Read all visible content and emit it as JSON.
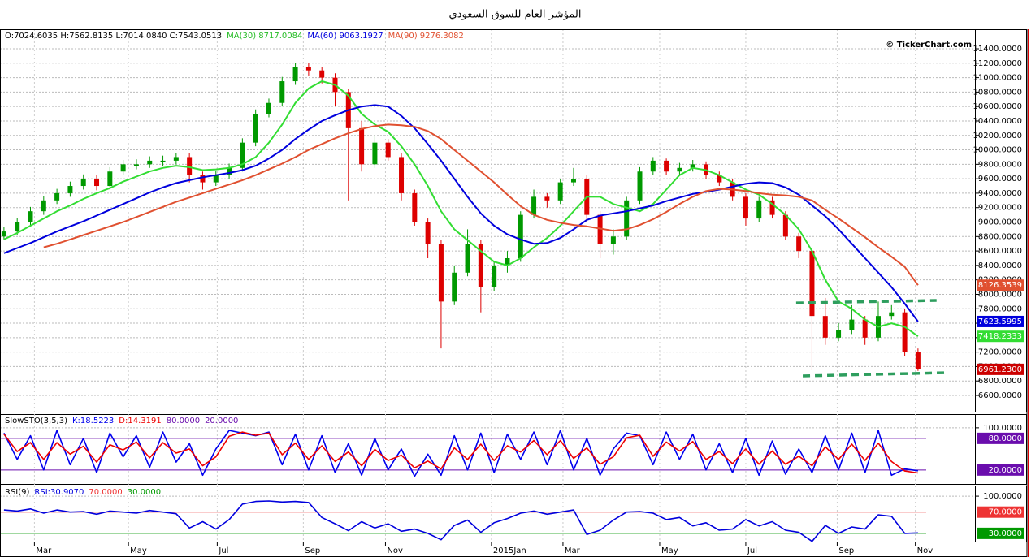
{
  "chart_data": [
    {
      "type": "candlestick",
      "title": "المؤشر العام للسوق السعودي",
      "copyright": "© TickerChart.com",
      "legend": [
        {
          "text": "O:7024.6035 H:7562.8135 L:7014.0840 C:7543.0513",
          "color": "#000000"
        },
        {
          "text": "MA(30) 8717.0084",
          "color": "#22bb22"
        },
        {
          "text": "MA(60) 9063.1927",
          "color": "#0000dd"
        },
        {
          "text": "MA(90) 9276.3082",
          "color": "#e05030"
        }
      ],
      "up_color": "#009900",
      "down_color": "#dd0000",
      "ohlc": [
        [
          8800,
          8930,
          8750,
          8870
        ],
        [
          8870,
          9060,
          8820,
          9000
        ],
        [
          9000,
          9210,
          8950,
          9150
        ],
        [
          9150,
          9360,
          9100,
          9300
        ],
        [
          9300,
          9460,
          9250,
          9400
        ],
        [
          9400,
          9560,
          9350,
          9500
        ],
        [
          9500,
          9660,
          9450,
          9600
        ],
        [
          9600,
          9650,
          9440,
          9500
        ],
        [
          9500,
          9760,
          9450,
          9700
        ],
        [
          9700,
          9860,
          9650,
          9800
        ],
        [
          9780,
          9870,
          9730,
          9800
        ],
        [
          9800,
          9910,
          9750,
          9850
        ],
        [
          9830,
          9920,
          9780,
          9850
        ],
        [
          9850,
          9960,
          9800,
          9900
        ],
        [
          9900,
          9950,
          9550,
          9650
        ],
        [
          9650,
          9700,
          9450,
          9550
        ],
        [
          9550,
          9710,
          9500,
          9650
        ],
        [
          9650,
          9810,
          9600,
          9750
        ],
        [
          9750,
          10160,
          9700,
          10100
        ],
        [
          10100,
          10560,
          10050,
          10500
        ],
        [
          10500,
          10710,
          10450,
          10650
        ],
        [
          10650,
          11010,
          10600,
          10950
        ],
        [
          10950,
          11200,
          10900,
          11150
        ],
        [
          11150,
          11200,
          11030,
          11100
        ],
        [
          11100,
          11150,
          10920,
          11000
        ],
        [
          11000,
          11060,
          10600,
          10800
        ],
        [
          10800,
          10850,
          9300,
          10300
        ],
        [
          10300,
          10400,
          9700,
          9800
        ],
        [
          9800,
          10200,
          9750,
          10100
        ],
        [
          10100,
          10150,
          9850,
          9900
        ],
        [
          9900,
          9950,
          9300,
          9400
        ],
        [
          9400,
          9450,
          8950,
          9000
        ],
        [
          9000,
          9050,
          8500,
          8700
        ],
        [
          8700,
          8750,
          7250,
          7900
        ],
        [
          7900,
          8400,
          7850,
          8300
        ],
        [
          8300,
          8900,
          8250,
          8700
        ],
        [
          8700,
          8750,
          7750,
          8100
        ],
        [
          8100,
          8450,
          8050,
          8400
        ],
        [
          8400,
          8600,
          8300,
          8500
        ],
        [
          8500,
          9150,
          8450,
          9100
        ],
        [
          9100,
          9450,
          9050,
          9350
        ],
        [
          9350,
          9400,
          9200,
          9300
        ],
        [
          9300,
          9600,
          9250,
          9550
        ],
        [
          9550,
          9750,
          9500,
          9600
        ],
        [
          9600,
          9650,
          9000,
          9100
        ],
        [
          9100,
          9150,
          8500,
          8700
        ],
        [
          8700,
          8900,
          8550,
          8800
        ],
        [
          8800,
          9350,
          8750,
          9300
        ],
        [
          9300,
          9760,
          9250,
          9700
        ],
        [
          9700,
          9900,
          9650,
          9850
        ],
        [
          9850,
          9880,
          9650,
          9700
        ],
        [
          9700,
          9820,
          9650,
          9750
        ],
        [
          9750,
          9860,
          9700,
          9800
        ],
        [
          9800,
          9840,
          9600,
          9650
        ],
        [
          9650,
          9700,
          9500,
          9550
        ],
        [
          9550,
          9600,
          9300,
          9350
        ],
        [
          9350,
          9400,
          8950,
          9050
        ],
        [
          9050,
          9350,
          9000,
          9300
        ],
        [
          9300,
          9350,
          9050,
          9100
        ],
        [
          9100,
          9150,
          8750,
          8800
        ],
        [
          8800,
          8850,
          8500,
          8600
        ],
        [
          8600,
          8650,
          6950,
          7700
        ],
        [
          7700,
          7950,
          7300,
          7400
        ],
        [
          7400,
          7600,
          7350,
          7500
        ],
        [
          7500,
          7850,
          7450,
          7650
        ],
        [
          7650,
          7700,
          7300,
          7400
        ],
        [
          7400,
          7900,
          7350,
          7700
        ],
        [
          7700,
          7850,
          7650,
          7750
        ],
        [
          7750,
          7800,
          7150,
          7200
        ],
        [
          7200,
          7250,
          6940,
          6961.23
        ]
      ],
      "series": [
        {
          "name": "MA(30)",
          "color": "#33dd33",
          "values": [
            8760,
            8850,
            8950,
            9050,
            9150,
            9230,
            9320,
            9400,
            9470,
            9560,
            9630,
            9700,
            9750,
            9780,
            9760,
            9720,
            9730,
            9750,
            9800,
            9900,
            10100,
            10350,
            10650,
            10850,
            10950,
            10900,
            10750,
            10500,
            10350,
            10250,
            10050,
            9800,
            9500,
            9150,
            8900,
            8750,
            8600,
            8450,
            8400,
            8500,
            8650,
            8780,
            8950,
            9150,
            9350,
            9350,
            9250,
            9200,
            9150,
            9250,
            9450,
            9650,
            9750,
            9720,
            9650,
            9550,
            9450,
            9380,
            9250,
            9100,
            8900,
            8600,
            8200,
            7900,
            7800,
            7650,
            7550,
            7600,
            7550,
            7418.2333
          ]
        },
        {
          "name": "MA(60)",
          "color": "#0000dd",
          "values": [
            8570,
            8640,
            8710,
            8790,
            8870,
            8940,
            9010,
            9090,
            9170,
            9250,
            9330,
            9410,
            9480,
            9540,
            9580,
            9620,
            9650,
            9680,
            9720,
            9780,
            9880,
            10000,
            10150,
            10280,
            10400,
            10480,
            10550,
            10600,
            10620,
            10600,
            10470,
            10300,
            10080,
            9850,
            9600,
            9350,
            9120,
            8950,
            8830,
            8760,
            8700,
            8710,
            8780,
            8900,
            9030,
            9090,
            9120,
            9150,
            9190,
            9230,
            9290,
            9340,
            9390,
            9420,
            9450,
            9490,
            9530,
            9550,
            9540,
            9480,
            9380,
            9230,
            9080,
            8900,
            8700,
            8500,
            8300,
            8100,
            7870,
            7623.5995
          ]
        },
        {
          "name": "MA(90)",
          "color": "#e05030",
          "values": [
            null,
            null,
            null,
            8650,
            8700,
            8760,
            8820,
            8880,
            8940,
            9000,
            9070,
            9140,
            9210,
            9280,
            9340,
            9400,
            9460,
            9520,
            9580,
            9650,
            9730,
            9810,
            9900,
            10000,
            10080,
            10160,
            10230,
            10290,
            10330,
            10350,
            10340,
            10320,
            10260,
            10150,
            10000,
            9850,
            9700,
            9550,
            9380,
            9220,
            9100,
            9030,
            8990,
            8960,
            8940,
            8910,
            8880,
            8900,
            8960,
            9040,
            9140,
            9250,
            9350,
            9430,
            9460,
            9450,
            9430,
            9400,
            9380,
            9370,
            9350,
            9300,
            9170,
            9050,
            8920,
            8790,
            8650,
            8520,
            8380,
            8126.3539
          ]
        }
      ],
      "last_price": {
        "value": 6961.23,
        "label": "6961.2300",
        "color": "#cc0000"
      },
      "trendlines": [
        {
          "x": [
            59.8,
            70.4
          ],
          "values": [
            7880,
            7915
          ]
        },
        {
          "x": [
            60.3,
            71.2
          ],
          "values": [
            6870,
            6915
          ]
        }
      ],
      "trendline_color": "#2e9e5e",
      "xlim": [
        -0.3,
        73.3
      ],
      "ylim": [
        6364,
        11670
      ],
      "grid": true,
      "yticks": [
        {
          "value": 6600,
          "label": "6600.0000"
        },
        {
          "value": 6800,
          "label": "6800.0000"
        },
        {
          "value": 7000,
          "label": "7000.0000"
        },
        {
          "value": 7200,
          "label": "7200.0000"
        },
        {
          "value": 7400,
          "label": "7400.0000"
        },
        {
          "value": 7600,
          "label": "7600.0000"
        },
        {
          "value": 7800,
          "label": "7800.0000"
        },
        {
          "value": 8000,
          "label": "8000.0000"
        },
        {
          "value": 8200,
          "label": "8200.0000"
        },
        {
          "value": 8400,
          "label": "8400.0000"
        },
        {
          "value": 8600,
          "label": "8600.0000"
        },
        {
          "value": 8800,
          "label": "8800.0000"
        },
        {
          "value": 9000,
          "label": "9000.0000"
        },
        {
          "value": 9200,
          "label": "9200.0000"
        },
        {
          "value": 9400,
          "label": "9400.0000"
        },
        {
          "value": 9600,
          "label": "9600.0000"
        },
        {
          "value": 9800,
          "label": "9800.0000"
        },
        {
          "value": 10000,
          "label": "10000.0000"
        },
        {
          "value": 10200,
          "label": "10200.0000"
        },
        {
          "value": 10400,
          "label": "10400.0000"
        },
        {
          "value": 10600,
          "label": "10600.0000"
        },
        {
          "value": 10800,
          "label": "10800.0000"
        },
        {
          "value": 11000,
          "label": "11000.0000"
        },
        {
          "value": 11200,
          "label": "11200.0000"
        },
        {
          "value": 11400,
          "label": "11400.0000"
        }
      ]
    },
    {
      "type": "line",
      "legend": [
        {
          "text": "SlowSTO(3,5,3)",
          "color": "#000000"
        },
        {
          "text": "K:18.5223",
          "color": "#0000ee"
        },
        {
          "text": "D:14.3191",
          "color": "#ee0000"
        },
        {
          "text": "80.0000",
          "color": "#6a0dad"
        },
        {
          "text": "20.0000",
          "color": "#6a0dad"
        }
      ],
      "series": [
        {
          "name": "K",
          "color": "#0000ee",
          "values": [
            90,
            40,
            85,
            20,
            95,
            30,
            80,
            15,
            90,
            45,
            85,
            25,
            92,
            35,
            70,
            10,
            60,
            95,
            90,
            85,
            92,
            30,
            88,
            20,
            85,
            15,
            70,
            10,
            80,
            20,
            60,
            8,
            50,
            10,
            85,
            20,
            90,
            15,
            88,
            40,
            92,
            30,
            95,
            20,
            80,
            10,
            60,
            90,
            85,
            30,
            92,
            40,
            88,
            20,
            70,
            15,
            80,
            10,
            75,
            12,
            60,
            15,
            85,
            20,
            90,
            15,
            95,
            10,
            22,
            18.5223
          ]
        },
        {
          "name": "D",
          "color": "#ee0000",
          "values": [
            88,
            55,
            72,
            40,
            72,
            50,
            65,
            35,
            68,
            58,
            73,
            43,
            72,
            52,
            60,
            28,
            45,
            84,
            92,
            86,
            90,
            49,
            71,
            40,
            66,
            36,
            54,
            28,
            59,
            38,
            48,
            24,
            37,
            22,
            62,
            40,
            69,
            38,
            66,
            54,
            76,
            49,
            76,
            42,
            62,
            31,
            45,
            81,
            86,
            46,
            73,
            56,
            74,
            40,
            55,
            32,
            60,
            31,
            56,
            31,
            46,
            28,
            64,
            40,
            69,
            38,
            71,
            36,
            18,
            14.3191
          ]
        }
      ],
      "levels": [
        {
          "value": 80,
          "label": "80.0000",
          "color": "#6a0dad"
        },
        {
          "value": 20,
          "label": "20.0000",
          "color": "#6a0dad"
        }
      ],
      "xlim": [
        -0.3,
        73.3
      ],
      "ylim": [
        -8,
        126
      ],
      "grid": true,
      "yticks": [
        {
          "value": 100,
          "label": "100.0000"
        }
      ]
    },
    {
      "type": "line",
      "legend": [
        {
          "text": "RSI(9)",
          "color": "#000000"
        },
        {
          "text": "RSI:30.9070",
          "color": "#0000dd"
        },
        {
          "text": "70.0000",
          "color": "#ee3333"
        },
        {
          "text": "30.0000",
          "color": "#009900"
        }
      ],
      "series": [
        {
          "name": "RSI",
          "color": "#0000dd",
          "values": [
            74,
            72,
            76,
            68,
            74,
            70,
            71,
            66,
            72,
            70,
            68,
            73,
            70,
            67,
            40,
            52,
            38,
            56,
            85,
            90,
            91,
            89,
            90,
            88,
            60,
            48,
            35,
            52,
            40,
            48,
            34,
            38,
            30,
            18,
            45,
            55,
            32,
            50,
            58,
            68,
            72,
            66,
            70,
            74,
            28,
            36,
            55,
            70,
            71,
            68,
            56,
            60,
            44,
            50,
            36,
            38,
            56,
            44,
            52,
            36,
            32,
            15,
            45,
            30,
            42,
            38,
            65,
            62,
            30,
            30.907
          ]
        }
      ],
      "levels": [
        {
          "value": 70,
          "label": "70.0000",
          "color": "#ee3333"
        },
        {
          "value": 30,
          "label": "30.0000",
          "color": "#009900"
        }
      ],
      "xlim": [
        -0.3,
        73.3
      ],
      "ylim": [
        13,
        120
      ],
      "grid": true,
      "yticks": [
        {
          "value": 100,
          "label": "100.0000"
        }
      ],
      "xticks": [
        {
          "value": 2.3,
          "label": "Mar"
        },
        {
          "value": 9.4,
          "label": "May"
        },
        {
          "value": 16.1,
          "label": "Jul"
        },
        {
          "value": 22.6,
          "label": "Sep"
        },
        {
          "value": 28.8,
          "label": "Nov"
        },
        {
          "value": 36.8,
          "label": "2015Jan"
        },
        {
          "value": 42.2,
          "label": "Mar"
        },
        {
          "value": 49.5,
          "label": "May"
        },
        {
          "value": 56.0,
          "label": "Jul"
        },
        {
          "value": 62.9,
          "label": "Sep"
        },
        {
          "value": 68.8,
          "label": "Nov"
        }
      ]
    }
  ]
}
